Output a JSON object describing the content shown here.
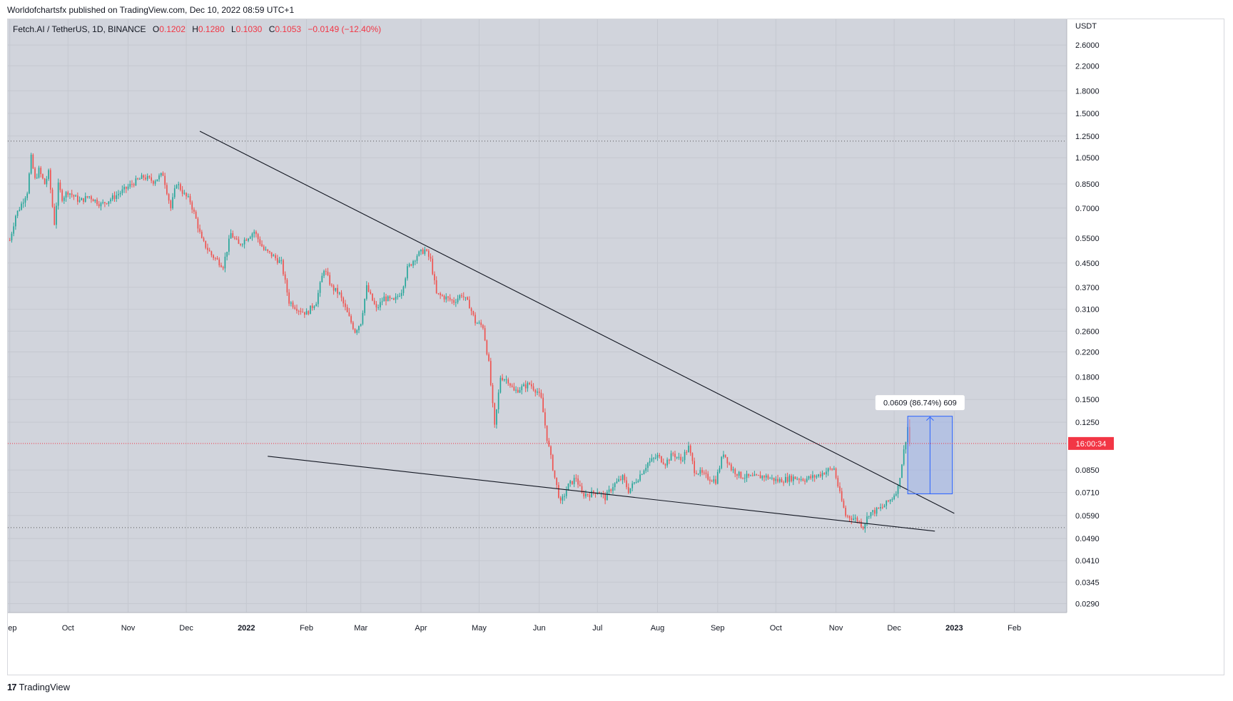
{
  "header": {
    "published_by": "Worldofchartsfx published on TradingView.com, Dec 10, 2022 08:59 UTC+1"
  },
  "footer": {
    "brand": "TradingView",
    "logo": "17"
  },
  "colors": {
    "background": "#d1d4dc",
    "up": "#26a69a",
    "down": "#ef5350",
    "price_line": "#f23645",
    "measure_fill": "#9fb3e8",
    "measure_stroke": "#2962ff",
    "trendline": "#131722"
  },
  "chart_data": {
    "type": "candlestick",
    "title": "Fetch.AI / TetherUS, 1D, BINANCE",
    "ohlc_legend": {
      "open_label": "O",
      "open": "0.1202",
      "high_label": "H",
      "high": "0.1280",
      "low_label": "L",
      "low": "0.1030",
      "close_label": "C",
      "close": "0.1053",
      "change": "−0.0149 (−12.40%)"
    },
    "y_axis": {
      "scale": "log",
      "currency": "USDT",
      "ticks": [
        "2.6000",
        "2.2000",
        "1.8000",
        "1.5000",
        "1.2500",
        "1.0500",
        "0.8500",
        "0.7000",
        "0.5500",
        "0.4500",
        "0.3700",
        "0.3100",
        "0.2600",
        "0.2200",
        "0.1800",
        "0.1500",
        "0.1250",
        "0.0850",
        "0.0710",
        "0.0590",
        "0.0490",
        "0.0410",
        "0.0345",
        "0.0290"
      ],
      "range": [
        0.027,
        3.2
      ]
    },
    "x_axis": {
      "labels": [
        "Sep",
        "Oct",
        "Nov",
        "Dec",
        "2022",
        "Feb",
        "Mar",
        "Apr",
        "May",
        "Jun",
        "Jul",
        "Aug",
        "Sep",
        "Oct",
        "Nov",
        "Dec",
        "2023",
        "Feb"
      ],
      "label_days": [
        0,
        30,
        61,
        91,
        122,
        153,
        181,
        212,
        242,
        273,
        303,
        334,
        365,
        395,
        426,
        456,
        487,
        518
      ],
      "bold_labels": [
        "2022",
        "2023"
      ],
      "days_start": "2021-09-01",
      "range_days": [
        -1,
        545
      ]
    },
    "key_points": [
      [
        0,
        0.54
      ],
      [
        3,
        0.66
      ],
      [
        5,
        0.7
      ],
      [
        9,
        0.8
      ],
      [
        11,
        1.05
      ],
      [
        13,
        0.88
      ],
      [
        15,
        0.95
      ],
      [
        18,
        0.85
      ],
      [
        20,
        0.93
      ],
      [
        23,
        0.62
      ],
      [
        25,
        0.84
      ],
      [
        27,
        0.76
      ],
      [
        30,
        0.8
      ],
      [
        36,
        0.74
      ],
      [
        41,
        0.77
      ],
      [
        47,
        0.72
      ],
      [
        53,
        0.76
      ],
      [
        60,
        0.82
      ],
      [
        64,
        0.86
      ],
      [
        69,
        0.9
      ],
      [
        74,
        0.87
      ],
      [
        79,
        0.92
      ],
      [
        83,
        0.7
      ],
      [
        86,
        0.86
      ],
      [
        90,
        0.78
      ],
      [
        93,
        0.74
      ],
      [
        96,
        0.64
      ],
      [
        99,
        0.54
      ],
      [
        104,
        0.48
      ],
      [
        110,
        0.44
      ],
      [
        114,
        0.57
      ],
      [
        118,
        0.52
      ],
      [
        122,
        0.55
      ],
      [
        126,
        0.58
      ],
      [
        131,
        0.5
      ],
      [
        135,
        0.48
      ],
      [
        140,
        0.45
      ],
      [
        144,
        0.33
      ],
      [
        149,
        0.31
      ],
      [
        153,
        0.3
      ],
      [
        158,
        0.33
      ],
      [
        162,
        0.43
      ],
      [
        166,
        0.37
      ],
      [
        170,
        0.35
      ],
      [
        174,
        0.3
      ],
      [
        178,
        0.26
      ],
      [
        181,
        0.28
      ],
      [
        184,
        0.37
      ],
      [
        189,
        0.31
      ],
      [
        193,
        0.34
      ],
      [
        198,
        0.33
      ],
      [
        202,
        0.36
      ],
      [
        205,
        0.43
      ],
      [
        210,
        0.48
      ],
      [
        214,
        0.5
      ],
      [
        217,
        0.46
      ],
      [
        220,
        0.35
      ],
      [
        225,
        0.34
      ],
      [
        229,
        0.33
      ],
      [
        233,
        0.35
      ],
      [
        237,
        0.32
      ],
      [
        240,
        0.28
      ],
      [
        244,
        0.27
      ],
      [
        247,
        0.2
      ],
      [
        250,
        0.12
      ],
      [
        253,
        0.18
      ],
      [
        257,
        0.175
      ],
      [
        260,
        0.16
      ],
      [
        264,
        0.165
      ],
      [
        268,
        0.17
      ],
      [
        272,
        0.16
      ],
      [
        274,
        0.15
      ],
      [
        277,
        0.11
      ],
      [
        281,
        0.08
      ],
      [
        284,
        0.065
      ],
      [
        288,
        0.075
      ],
      [
        292,
        0.08
      ],
      [
        295,
        0.07
      ],
      [
        299,
        0.07
      ],
      [
        303,
        0.072
      ],
      [
        307,
        0.068
      ],
      [
        311,
        0.075
      ],
      [
        316,
        0.08
      ],
      [
        319,
        0.072
      ],
      [
        324,
        0.08
      ],
      [
        329,
        0.09
      ],
      [
        334,
        0.095
      ],
      [
        338,
        0.09
      ],
      [
        342,
        0.097
      ],
      [
        346,
        0.092
      ],
      [
        350,
        0.102
      ],
      [
        353,
        0.085
      ],
      [
        356,
        0.083
      ],
      [
        360,
        0.08
      ],
      [
        364,
        0.078
      ],
      [
        368,
        0.098
      ],
      [
        372,
        0.086
      ],
      [
        377,
        0.081
      ],
      [
        383,
        0.08
      ],
      [
        389,
        0.081
      ],
      [
        396,
        0.078
      ],
      [
        404,
        0.08
      ],
      [
        410,
        0.079
      ],
      [
        416,
        0.081
      ],
      [
        422,
        0.085
      ],
      [
        425,
        0.086
      ],
      [
        428,
        0.07
      ],
      [
        431,
        0.059
      ],
      [
        434,
        0.058
      ],
      [
        437,
        0.057
      ],
      [
        440,
        0.054
      ],
      [
        443,
        0.06
      ],
      [
        446,
        0.061
      ],
      [
        450,
        0.063
      ],
      [
        455,
        0.068
      ],
      [
        458,
        0.074
      ],
      [
        460,
        0.09
      ],
      [
        463,
        0.12
      ],
      [
        464,
        0.1053
      ]
    ],
    "last_day": 464,
    "last_price": 0.1053,
    "countdown_label": "16:00:34",
    "annotations": {
      "upper_trendline": {
        "from": [
          98,
          1.3
        ],
        "to": [
          487,
          0.06
        ]
      },
      "lower_trendline": {
        "from": [
          133,
          0.095
        ],
        "to": [
          477,
          0.052
        ]
      },
      "resistance_level": 1.2,
      "support_level": 0.0535,
      "measure": {
        "label": "0.0609 (86.74%) 609",
        "day_start": 463,
        "day_end": 486,
        "price_start": 0.0702,
        "price_end": 0.1311
      }
    }
  }
}
